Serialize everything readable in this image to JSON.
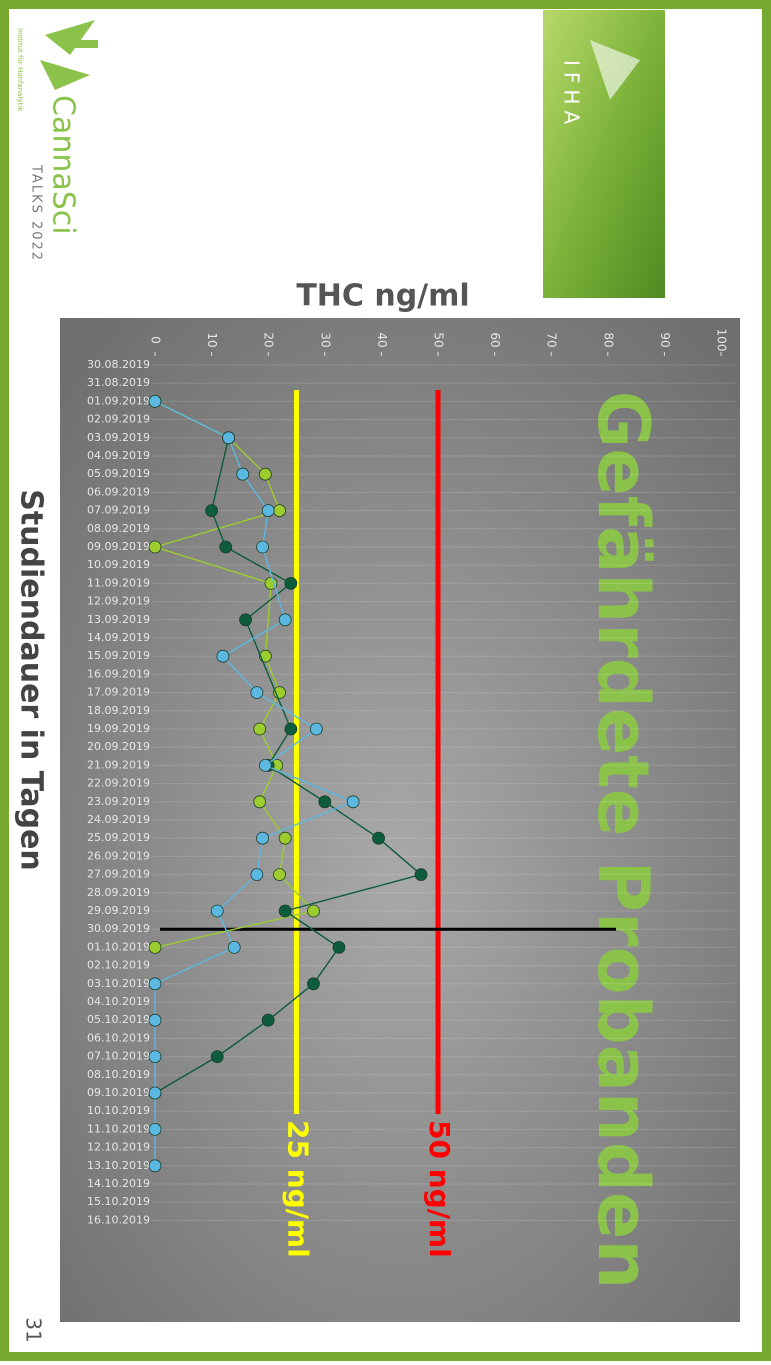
{
  "logo": {
    "name": "CannaSci",
    "subtitle": "TALKS 2022",
    "institute": "Institut für Hanfanalytik"
  },
  "badge": {
    "text": "IFHA"
  },
  "page_number": "31",
  "chart_data": {
    "type": "line",
    "title": "Gefährdete Probanden",
    "x_label": "Studiendauer in Tagen",
    "y_label": "THC ng/ml",
    "categories": [
      "30.08.2019",
      "31.08.2019",
      "01.09.2019",
      "02.09.2019",
      "03.09.2019",
      "04.09.2019",
      "05.09.2019",
      "06.09.2019",
      "07.09.2019",
      "08.09.2019",
      "09.09.2019",
      "10.09.2019",
      "11.09.2019",
      "12.09.2019",
      "13.09.2019",
      "14.09.2019",
      "15.09.2019",
      "16.09.2019",
      "17.09.2019",
      "18.09.2019",
      "19.09.2019",
      "20.09.2019",
      "21.09.2019",
      "22.09.2019",
      "23.09.2019",
      "24.09.2019",
      "25.09.2019",
      "26.09.2019",
      "27.09.2019",
      "28.09.2019",
      "29.09.2019",
      "30.09.2019",
      "01.10.2019",
      "02.10.2019",
      "03.10.2019",
      "04.10.2019",
      "05.10.2019",
      "06.10.2019",
      "07.10.2019",
      "08.10.2019",
      "09.10.2019",
      "10.10.2019",
      "11.10.2019",
      "12.10.2019",
      "13.10.2019",
      "14.10.2019",
      "15.10.2019",
      "16.10.2019"
    ],
    "ylim": [
      0,
      100
    ],
    "yticks": [
      0,
      10,
      20,
      30,
      40,
      50,
      60,
      70,
      80,
      90,
      100
    ],
    "grid": true,
    "series": [
      {
        "color": "#9ccc2e",
        "x": [
          "01.09.2019",
          "03.09.2019",
          "05.09.2019",
          "07.09.2019",
          "09.09.2019",
          "11.09.2019",
          "15.09.2019",
          "17.09.2019",
          "19.09.2019",
          "21.09.2019",
          "23.09.2019",
          "25.09.2019",
          "27.09.2019",
          "29.09.2019",
          "01.10.2019"
        ],
        "values": [
          0,
          13,
          19.5,
          22,
          0,
          20.5,
          19.5,
          22,
          18.5,
          21.5,
          18.5,
          23,
          22,
          28,
          0
        ]
      },
      {
        "color": "#0d5c3b",
        "x": [
          "03.09.2019",
          "07.09.2019",
          "09.09.2019",
          "11.09.2019",
          "13.09.2019",
          "19.09.2019",
          "21.09.2019",
          "23.09.2019",
          "25.09.2019",
          "27.09.2019",
          "29.09.2019",
          "01.10.2019",
          "03.10.2019",
          "05.10.2019",
          "07.10.2019",
          "09.10.2019"
        ],
        "values": [
          13,
          10,
          12.5,
          24,
          16,
          24,
          20,
          30,
          39.5,
          47,
          23,
          32.5,
          28,
          20,
          11,
          0
        ]
      },
      {
        "color": "#5bb8e0",
        "x": [
          "01.09.2019",
          "03.09.2019",
          "05.09.2019",
          "07.09.2019",
          "09.09.2019",
          "13.09.2019",
          "15.09.2019",
          "17.09.2019",
          "19.09.2019",
          "21.09.2019",
          "23.09.2019",
          "25.09.2019",
          "27.09.2019",
          "29.09.2019",
          "01.10.2019",
          "03.10.2019",
          "05.10.2019",
          "07.10.2019",
          "09.10.2019",
          "11.10.2019",
          "13.10.2019"
        ],
        "values": [
          0,
          13,
          15.5,
          20,
          19,
          23,
          12,
          18,
          28.5,
          19.5,
          35,
          19,
          18,
          11,
          14,
          0,
          0,
          0,
          0,
          0,
          0
        ]
      }
    ],
    "reference_lines": [
      {
        "value": 25,
        "label": "25 ng/ml",
        "color": "#ffff00"
      },
      {
        "value": 50,
        "label": "50 ng/ml",
        "color": "#ff0000"
      }
    ],
    "marker_category": {
      "x": "30.09.2019",
      "color": "#000000"
    }
  }
}
